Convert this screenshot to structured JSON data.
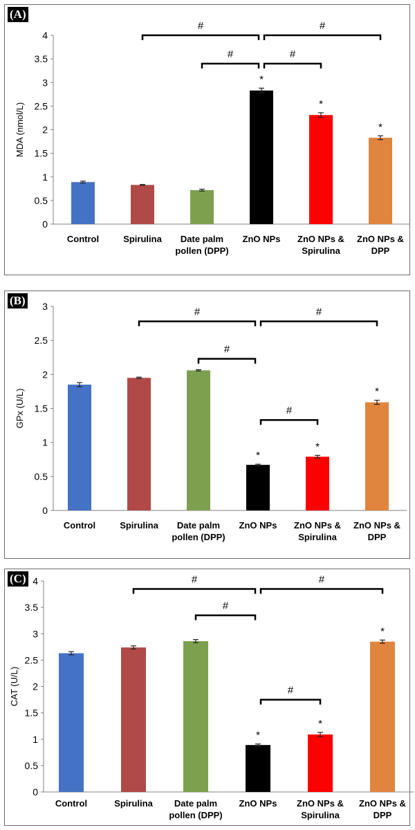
{
  "chart_data": [
    {
      "id": "A",
      "type": "bar",
      "panel_label": "(A)",
      "ylabel": "MDA (nmol/L)",
      "xlabel": "",
      "ylim": [
        0,
        4
      ],
      "yticks": [
        "0",
        "0.5",
        "1",
        "1.5",
        "2",
        "2.5",
        "3",
        "3.5",
        "4"
      ],
      "categories": [
        [
          "Control"
        ],
        [
          "Spirulina"
        ],
        [
          "Date palm",
          "pollen (DPP)"
        ],
        [
          "ZnO NPs"
        ],
        [
          "ZnO NPs &",
          "Spirulina"
        ],
        [
          "ZnO NPs &",
          "DPP"
        ]
      ],
      "values": [
        0.89,
        0.83,
        0.72,
        2.83,
        2.31,
        1.83
      ],
      "errors": [
        0.02,
        0.01,
        0.02,
        0.05,
        0.05,
        0.04
      ],
      "colors": [
        "#4472C4",
        "#B04A48",
        "#7DA04F",
        "#000000",
        "#FF0000",
        "#E0853E"
      ],
      "significance": [
        "",
        "",
        "",
        "*",
        "*",
        "*"
      ],
      "comparisons": [
        {
          "from": 1,
          "to": 3,
          "level": 4.0,
          "label": "#"
        },
        {
          "from": 3,
          "to": 5,
          "level": 4.0,
          "label": "#"
        },
        {
          "from": 2,
          "to": 3,
          "level": 3.4,
          "label": "#"
        },
        {
          "from": 3,
          "to": 4,
          "level": 3.4,
          "label": "#"
        }
      ]
    },
    {
      "id": "B",
      "type": "bar",
      "panel_label": "(B)",
      "ylabel": "GPx (U/L)",
      "xlabel": "",
      "ylim": [
        0,
        3
      ],
      "yticks": [
        "0",
        "0.5",
        "1",
        "1.5",
        "2",
        "2.5",
        "3"
      ],
      "categories": [
        [
          "Control"
        ],
        [
          "Spirulina"
        ],
        [
          "Date palm",
          "pollen (DPP)"
        ],
        [
          "ZnO NPs"
        ],
        [
          "ZnO NPs &",
          "Spirulina"
        ],
        [
          "ZnO NPs &",
          "DPP"
        ]
      ],
      "values": [
        1.85,
        1.95,
        2.06,
        0.67,
        0.79,
        1.59
      ],
      "errors": [
        0.03,
        0.01,
        0.01,
        0.01,
        0.02,
        0.03
      ],
      "colors": [
        "#4472C4",
        "#B04A48",
        "#7DA04F",
        "#000000",
        "#FF0000",
        "#E0853E"
      ],
      "significance": [
        "",
        "",
        "",
        "*",
        "*",
        "*"
      ],
      "comparisons": [
        {
          "from": 1,
          "to": 3,
          "level": 2.78,
          "label": "#"
        },
        {
          "from": 3,
          "to": 5,
          "level": 2.78,
          "label": "#"
        },
        {
          "from": 2,
          "to": 3,
          "level": 2.23,
          "label": "#"
        },
        {
          "from": 3,
          "to": 4,
          "level": 1.33,
          "label": "#"
        }
      ]
    },
    {
      "id": "C",
      "type": "bar",
      "panel_label": "(C)",
      "ylabel": "CAT (U/L)",
      "xlabel": "",
      "ylim": [
        0,
        4
      ],
      "yticks": [
        "0",
        "0.5",
        "1",
        "1.5",
        "2",
        "2.5",
        "3",
        "3.5",
        "4"
      ],
      "categories": [
        [
          "Control"
        ],
        [
          "Spirulina"
        ],
        [
          "Date palm",
          "pollen (DPP)"
        ],
        [
          "ZnO NPs"
        ],
        [
          "ZnO NPs &",
          "Spirulina"
        ],
        [
          "ZnO NPs &",
          "DPP"
        ]
      ],
      "values": [
        2.63,
        2.74,
        2.86,
        0.89,
        1.09,
        2.85
      ],
      "errors": [
        0.03,
        0.03,
        0.03,
        0.02,
        0.04,
        0.03
      ],
      "colors": [
        "#4472C4",
        "#B04A48",
        "#7DA04F",
        "#000000",
        "#FF0000",
        "#E0853E"
      ],
      "significance": [
        "",
        "",
        "",
        "*",
        "*",
        "*"
      ],
      "comparisons": [
        {
          "from": 1,
          "to": 3,
          "level": 3.85,
          "label": "#"
        },
        {
          "from": 3,
          "to": 5,
          "level": 3.85,
          "label": "#"
        },
        {
          "from": 2,
          "to": 3,
          "level": 3.35,
          "label": "#"
        },
        {
          "from": 3,
          "to": 4,
          "level": 1.75,
          "label": "#"
        }
      ]
    }
  ]
}
